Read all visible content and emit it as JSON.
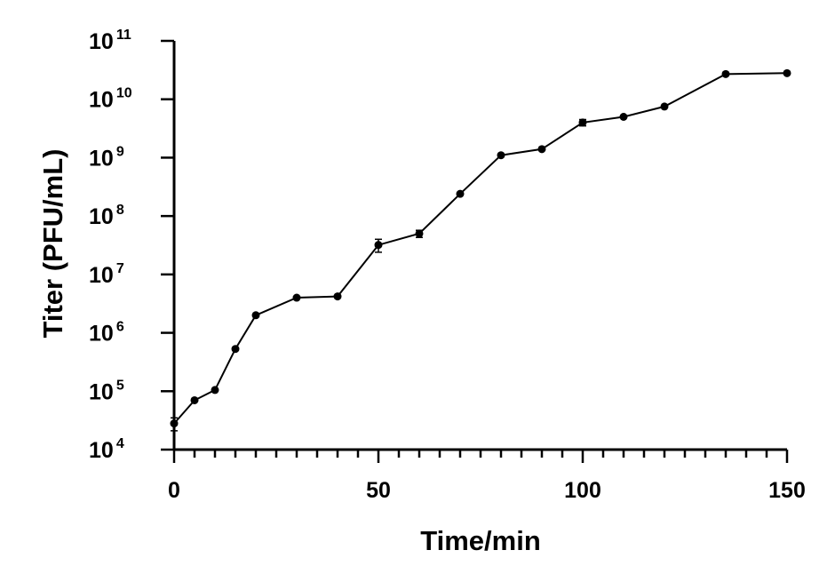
{
  "chart_data": {
    "type": "line",
    "title": "",
    "xlabel": "Time/min",
    "ylabel": "Titer (PFU/mL)",
    "xlim": [
      0,
      150
    ],
    "ylim": [
      10000,
      100000000000
    ],
    "yscale": "log",
    "x_ticks": [
      "0",
      "50",
      "100",
      "150"
    ],
    "y_ticks": [
      {
        "base": "10",
        "exp": "4"
      },
      {
        "base": "10",
        "exp": "5"
      },
      {
        "base": "10",
        "exp": "6"
      },
      {
        "base": "10",
        "exp": "7"
      },
      {
        "base": "10",
        "exp": "8"
      },
      {
        "base": "10",
        "exp": "9"
      },
      {
        "base": "10",
        "exp": "10"
      },
      {
        "base": "10",
        "exp": "11"
      }
    ],
    "grid": false,
    "legend": "none",
    "marker": "circle",
    "color": "#000000",
    "x": [
      0,
      5,
      10,
      15,
      20,
      30,
      40,
      50,
      60,
      70,
      80,
      90,
      100,
      110,
      120,
      135,
      150
    ],
    "y": [
      28000,
      70000,
      105000,
      530000,
      2000000,
      4000000,
      4200000,
      32000000,
      50000000,
      240000000,
      1100000000,
      1400000000,
      4000000000,
      5000000000,
      7500000000,
      27000000000,
      28000000000
    ],
    "error": [
      7000,
      0,
      0,
      0,
      0,
      0,
      0,
      8000000,
      7000000,
      0,
      0,
      0,
      500000000,
      0,
      0,
      0,
      0
    ]
  }
}
